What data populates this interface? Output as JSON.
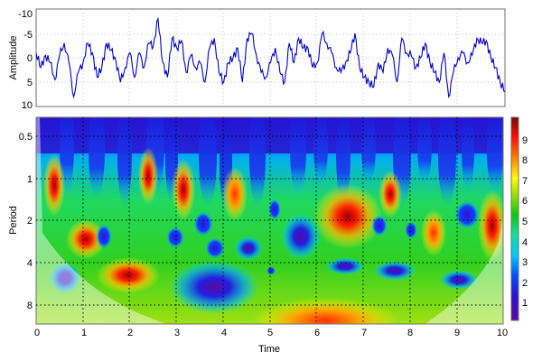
{
  "chart_data": [
    {
      "type": "line",
      "title": "",
      "xlabel": "",
      "ylabel": "Amplitude",
      "ylim": [
        10,
        -10
      ],
      "y_reversed": true,
      "yticks": [
        "-10",
        "-5",
        "0",
        "5",
        "10"
      ],
      "xlim": [
        0,
        10
      ],
      "grid": true,
      "series": [
        {
          "name": "signal",
          "color": "#0000c8",
          "x": [
            0,
            0.1,
            0.2,
            0.3,
            0.4,
            0.5,
            0.6,
            0.7,
            0.8,
            0.9,
            1.0,
            1.1,
            1.2,
            1.3,
            1.4,
            1.5,
            1.6,
            1.7,
            1.8,
            1.9,
            2.0,
            2.1,
            2.2,
            2.3,
            2.4,
            2.5,
            2.6,
            2.7,
            2.8,
            2.9,
            3.0,
            3.1,
            3.2,
            3.3,
            3.4,
            3.5,
            3.6,
            3.7,
            3.8,
            3.9,
            4.0,
            4.1,
            4.2,
            4.3,
            4.4,
            4.5,
            4.6,
            4.7,
            4.8,
            4.9,
            5.0,
            5.1,
            5.2,
            5.3,
            5.4,
            5.5,
            5.6,
            5.7,
            5.8,
            5.9,
            6.0,
            6.1,
            6.2,
            6.3,
            6.4,
            6.5,
            6.6,
            6.7,
            6.8,
            6.9,
            7.0,
            7.1,
            7.2,
            7.3,
            7.4,
            7.5,
            7.6,
            7.7,
            7.8,
            7.9,
            8.0,
            8.1,
            8.2,
            8.3,
            8.4,
            8.5,
            8.6,
            8.7,
            8.8,
            8.9,
            9.0,
            9.1,
            9.2,
            9.3,
            9.4,
            9.5,
            9.6,
            9.7,
            9.8,
            9.9,
            10.0
          ],
          "values": [
            -1,
            2,
            -0.5,
            1,
            4.5,
            -0.5,
            -3,
            1,
            8,
            3,
            1,
            -3,
            -1,
            4,
            2,
            -3,
            -1.5,
            0.5,
            5,
            2,
            -1,
            4,
            -1,
            2,
            -3,
            -2.5,
            -8,
            1,
            4,
            -4,
            -2,
            -3.5,
            3,
            -0.5,
            2,
            1,
            5,
            -2,
            -4,
            3,
            5,
            1,
            0,
            -2,
            5,
            -4,
            -5,
            -0.5,
            3,
            4,
            1,
            -2,
            3,
            5,
            -3,
            1,
            -4,
            -2,
            -2,
            2,
            1,
            -5,
            -3,
            -1,
            2,
            3,
            1,
            -1,
            -5,
            2,
            4,
            5,
            6,
            1,
            3,
            -2,
            -0.5,
            5,
            -4,
            -1,
            -0.5,
            2,
            0,
            -3,
            1,
            3,
            5,
            -1,
            8,
            3,
            0,
            -1,
            1,
            -0.5,
            -4,
            -3,
            -3.5,
            0,
            2,
            5,
            7
          ]
        }
      ]
    },
    {
      "type": "heatmap",
      "title": "",
      "xlabel": "Time",
      "ylabel": "Period",
      "xlim": [
        0,
        10
      ],
      "xticks": [
        "0",
        "1",
        "2",
        "3",
        "4",
        "5",
        "6",
        "7",
        "8",
        "9",
        "10"
      ],
      "yscale": "log2",
      "yticks": [
        "0.5",
        "1",
        "2",
        "4",
        "8"
      ],
      "y_reversed": true,
      "grid": true,
      "grid_style": "dotted",
      "colorbar": {
        "ticks": [
          "1",
          "2",
          "3",
          "4",
          "5",
          "6",
          "7",
          "8",
          "9"
        ],
        "range": [
          0,
          10
        ],
        "colormap": "jet"
      },
      "cone_of_influence": true,
      "hotspots": [
        {
          "time": 0.4,
          "period": 1.2,
          "value": 9
        },
        {
          "time": 1.1,
          "period": 2.8,
          "value": 8
        },
        {
          "time": 2.3,
          "period": 1.0,
          "value": 8.5
        },
        {
          "time": 3.2,
          "period": 1.3,
          "value": 9
        },
        {
          "time": 4.2,
          "period": 1.5,
          "value": 8
        },
        {
          "time": 2.0,
          "period": 5.0,
          "value": 8
        },
        {
          "time": 6.3,
          "period": 2.0,
          "value": 9.5
        },
        {
          "time": 7.6,
          "period": 1.6,
          "value": 8.5
        },
        {
          "time": 8.6,
          "period": 2.8,
          "value": 7.5
        },
        {
          "time": 9.7,
          "period": 2.5,
          "value": 9
        },
        {
          "time": 6.5,
          "period": 9.0,
          "value": 8
        }
      ],
      "coldspots": [
        {
          "time": 3.8,
          "period": 6.0,
          "value": 0.5
        },
        {
          "time": 7.8,
          "period": 5.0,
          "value": 1
        },
        {
          "time": 6.8,
          "period": 4.5,
          "value": 1
        },
        {
          "time": 8.8,
          "period": 5.2,
          "value": 1
        },
        {
          "time": 4.1,
          "period": 3.5,
          "value": 1
        }
      ]
    }
  ],
  "labels": {
    "amp_ylabel": "Amplitude",
    "period_ylabel": "Period",
    "time_xlabel": "Time",
    "amp_ticks": [
      "-10",
      "-5",
      "0",
      "5",
      "10"
    ],
    "period_ticks": [
      "0.5",
      "1",
      "2",
      "4",
      "8"
    ],
    "time_ticks": [
      "0",
      "1",
      "2",
      "3",
      "4",
      "5",
      "6",
      "7",
      "8",
      "9",
      "10"
    ],
    "colorbar_ticks": [
      "1",
      "2",
      "3",
      "4",
      "5",
      "6",
      "7",
      "8",
      "9"
    ]
  }
}
